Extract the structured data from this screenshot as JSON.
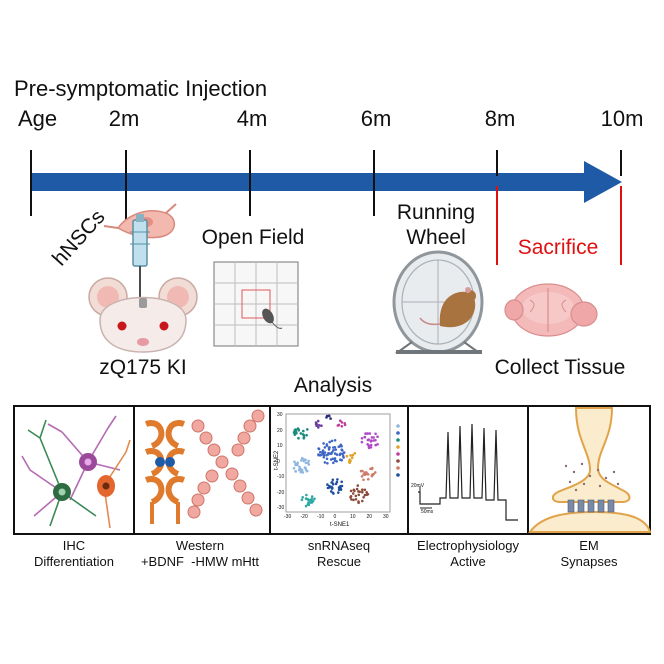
{
  "title": "Pre-symptomatic Injection",
  "timeline": {
    "start_label": "Age",
    "ticks": [
      "2m",
      "4m",
      "6m",
      "8m",
      "10m"
    ],
    "arrow_color": "#1f5aa6"
  },
  "events": {
    "injection": "hNSCs",
    "model": "zQ175 KI",
    "open_field": "Open Field",
    "running_wheel_line1": "Running",
    "running_wheel_line2": "Wheel",
    "sacrifice": "Sacrifice",
    "collect": "Collect Tissue",
    "sacrifice_color": "#e01010"
  },
  "analysis": {
    "title": "Analysis",
    "panels": [
      {
        "label_1": "IHC",
        "label_2": "Differentiation",
        "icon": "neurons-icon"
      },
      {
        "label_1": "Western",
        "label_2": "+BDNF  -HMW mHtt",
        "icon": "protein-icon"
      },
      {
        "label_1": "snRNAseq",
        "label_2": "Rescue",
        "icon": "tsne-plot-icon"
      },
      {
        "label_1": "Electrophysiology",
        "label_2": "Active",
        "icon": "action-potential-icon"
      },
      {
        "label_1": "EM",
        "label_2": "Synapses",
        "icon": "synapse-icon"
      }
    ],
    "tsne": {
      "y_axis": "t-SNE2",
      "x_axis": "t-SNE1",
      "x_ticks": [
        "-30",
        "-20",
        "-10",
        "0",
        "10",
        "20",
        "30"
      ],
      "y_ticks": [
        "30",
        "20",
        "10",
        "0",
        "-10",
        "-20",
        "-30"
      ]
    },
    "ephys": {
      "scale_y": "20mV",
      "scale_x": "50ms"
    }
  }
}
